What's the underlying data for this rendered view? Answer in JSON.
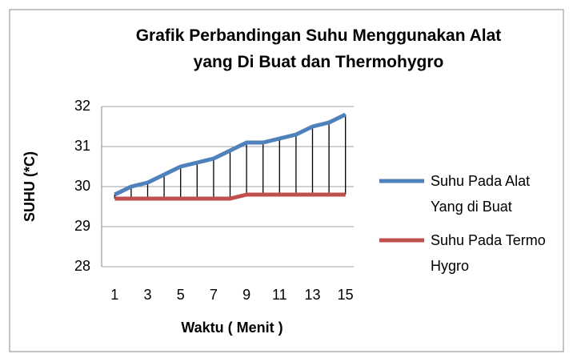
{
  "chart_data": {
    "type": "line",
    "title": "Grafik Perbandingan Suhu Menggunakan Alat yang Di Buat dan Thermohygro",
    "x_label": "Waktu ( Menit )",
    "y_label": "SUHU (*C)",
    "categories": [
      1,
      null,
      3,
      null,
      5,
      null,
      7,
      null,
      9,
      null,
      11,
      null,
      13,
      null,
      15
    ],
    "series": [
      {
        "name": "Suhu Pada Alat Yang di Buat",
        "color": "#4f81bd",
        "values": [
          29.8,
          30.0,
          30.1,
          30.3,
          30.5,
          30.6,
          30.7,
          30.9,
          31.1,
          31.1,
          31.2,
          31.3,
          31.5,
          31.6,
          31.8
        ]
      },
      {
        "name": "Suhu Pada Termo Hygro",
        "color": "#c0504d",
        "values": [
          29.7,
          29.7,
          29.7,
          29.7,
          29.7,
          29.7,
          29.7,
          29.7,
          29.8,
          29.8,
          29.8,
          29.8,
          29.8,
          29.8,
          29.8
        ]
      }
    ],
    "ylim": [
      28,
      32
    ],
    "yticks": [
      28,
      29,
      30,
      31,
      32
    ],
    "grid": true,
    "drop_lines": true,
    "legend": "right"
  }
}
